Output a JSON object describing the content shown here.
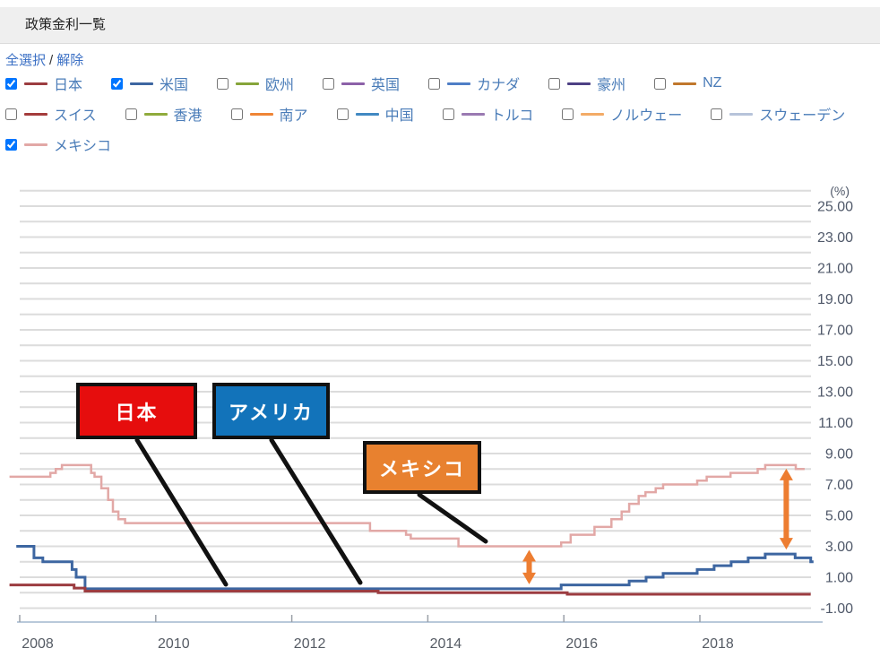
{
  "header": {
    "title": "政策金利一覧"
  },
  "links": {
    "select_all": "全選択",
    "separator": "/",
    "deselect": "解除"
  },
  "legend": {
    "rows": [
      [
        {
          "id": "japan",
          "label": "日本",
          "color": "#9c3c40",
          "checked": true
        },
        {
          "id": "us",
          "label": "米国",
          "color": "#3d66a1",
          "checked": true
        },
        {
          "id": "europe",
          "label": "欧州",
          "color": "#86a43a",
          "checked": false
        },
        {
          "id": "uk",
          "label": "英国",
          "color": "#8c61a8",
          "checked": false
        },
        {
          "id": "canada",
          "label": "カナダ",
          "color": "#4f7ec6",
          "checked": false
        },
        {
          "id": "australia",
          "label": "豪州",
          "color": "#4d4084",
          "checked": false
        },
        {
          "id": "nz",
          "label": "NZ",
          "color": "#c0772c",
          "checked": false
        }
      ],
      [
        {
          "id": "swiss",
          "label": "スイス",
          "color": "#a43c3c",
          "checked": false
        },
        {
          "id": "hongkong",
          "label": "香港",
          "color": "#90ab3c",
          "checked": false
        },
        {
          "id": "southafrica",
          "label": "南ア",
          "color": "#ef8536",
          "checked": false
        },
        {
          "id": "china",
          "label": "中国",
          "color": "#4189c2",
          "checked": false
        },
        {
          "id": "turkey",
          "label": "トルコ",
          "color": "#9a7ab2",
          "checked": false
        },
        {
          "id": "norway",
          "label": "ノルウェー",
          "color": "#f3ab66",
          "checked": false
        },
        {
          "id": "sweden",
          "label": "スウェーデン",
          "color": "#b7c3da",
          "checked": false
        }
      ],
      [
        {
          "id": "mexico",
          "label": "メキシコ",
          "color": "#e2a8a6",
          "checked": true
        }
      ]
    ]
  },
  "chart_data": {
    "type": "line",
    "title": "政策金利一覧",
    "unit_label": "(%)",
    "y_axis": {
      "min": -1,
      "max": 25,
      "gridline_step": 1,
      "label_step": 2
    },
    "y_tick_labels": [
      "25.00",
      "23.00",
      "21.00",
      "19.00",
      "17.00",
      "15.00",
      "13.00",
      "11.00",
      "9.00",
      "7.00",
      "5.00",
      "3.00",
      "1.00",
      "-1.00"
    ],
    "x_tick_labels": [
      "2008",
      "2010",
      "2012",
      "2014",
      "2016",
      "2018"
    ],
    "x_ticks": [
      2008,
      2010,
      2012,
      2014,
      2016,
      2018
    ],
    "series": [
      {
        "id": "mexico",
        "name": "メキシコ",
        "color": "#e2a8a6",
        "width": 2.5,
        "points": [
          [
            2007.85,
            7.5
          ],
          [
            2008.45,
            7.75
          ],
          [
            2008.53,
            8.0
          ],
          [
            2008.62,
            8.25
          ],
          [
            2009.05,
            7.75
          ],
          [
            2009.1,
            7.5
          ],
          [
            2009.2,
            6.75
          ],
          [
            2009.3,
            6.0
          ],
          [
            2009.37,
            5.25
          ],
          [
            2009.45,
            4.75
          ],
          [
            2009.55,
            4.5
          ],
          [
            2013.15,
            4.0
          ],
          [
            2013.68,
            3.75
          ],
          [
            2013.75,
            3.5
          ],
          [
            2014.45,
            3.0
          ],
          [
            2015.96,
            3.25
          ],
          [
            2016.1,
            3.75
          ],
          [
            2016.45,
            4.25
          ],
          [
            2016.7,
            4.75
          ],
          [
            2016.85,
            5.25
          ],
          [
            2016.96,
            5.75
          ],
          [
            2017.1,
            6.25
          ],
          [
            2017.2,
            6.5
          ],
          [
            2017.35,
            6.75
          ],
          [
            2017.46,
            7.0
          ],
          [
            2017.96,
            7.25
          ],
          [
            2018.1,
            7.5
          ],
          [
            2018.45,
            7.75
          ],
          [
            2018.85,
            8.0
          ],
          [
            2018.96,
            8.25
          ],
          [
            2019.41,
            8.0
          ]
        ],
        "end_year": 2019.54
      },
      {
        "id": "us",
        "name": "米国",
        "color": "#3d66a1",
        "width": 3,
        "points": [
          [
            2007.95,
            3.0
          ],
          [
            2008.21,
            2.25
          ],
          [
            2008.34,
            2.0
          ],
          [
            2008.77,
            1.5
          ],
          [
            2008.83,
            1.0
          ],
          [
            2008.96,
            0.25
          ],
          [
            2015.96,
            0.5
          ],
          [
            2016.96,
            0.75
          ],
          [
            2017.21,
            1.0
          ],
          [
            2017.46,
            1.25
          ],
          [
            2017.96,
            1.5
          ],
          [
            2018.21,
            1.75
          ],
          [
            2018.46,
            2.0
          ],
          [
            2018.71,
            2.25
          ],
          [
            2018.96,
            2.5
          ],
          [
            2019.4,
            2.25
          ],
          [
            2019.63,
            2.0
          ]
        ],
        "end_year": 2019.67
      },
      {
        "id": "japan",
        "name": "日本",
        "color": "#9c3c40",
        "width": 3,
        "points": [
          [
            2007.85,
            0.5
          ],
          [
            2008.8,
            0.3
          ],
          [
            2008.96,
            0.1
          ],
          [
            2013.27,
            0.0
          ],
          [
            2016.05,
            -0.1
          ]
        ],
        "end_year": 2019.63
      }
    ],
    "legend_position": "top"
  },
  "annotations": {
    "japan": {
      "label": "日本",
      "color": "#e60d0d"
    },
    "us": {
      "label": "アメリカ",
      "color": "#1273ba"
    },
    "mexico": {
      "label": "メキシコ",
      "color": "#e8812f"
    },
    "arrow_color": "#ed7d31",
    "arrows": [
      {
        "x_year": 2015.49,
        "from_value": 3.0,
        "to_value": 0.25
      },
      {
        "x_year": 2019.27,
        "from_value": 8.25,
        "to_value": 2.5
      }
    ]
  }
}
